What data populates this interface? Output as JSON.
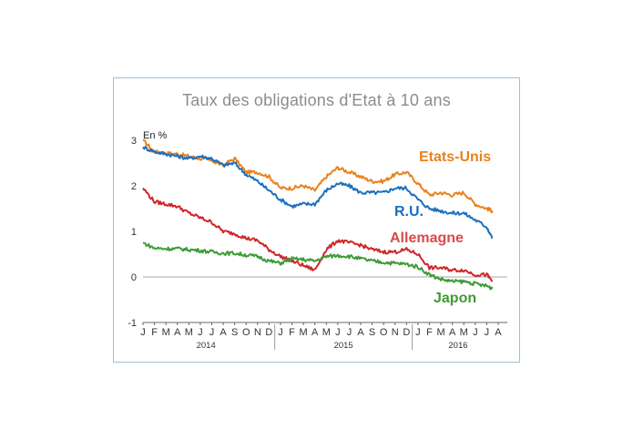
{
  "chart_data": {
    "type": "line",
    "title": "Taux des obligations d'Etat à 10 ans",
    "ylabel": "En %",
    "ylim": [
      -1,
      3
    ],
    "yticks": [
      "-1",
      "0",
      "1",
      "2",
      "3"
    ],
    "x_month_labels": [
      "J",
      "F",
      "M",
      "A",
      "M",
      "J",
      "J",
      "A",
      "S",
      "O",
      "N",
      "D",
      "J",
      "F",
      "M",
      "A",
      "M",
      "J",
      "J",
      "A",
      "S",
      "O",
      "N",
      "D",
      "J",
      "F",
      "M",
      "A",
      "M",
      "J",
      "J",
      "A"
    ],
    "x_year_labels": [
      "2014",
      "2015",
      "2016"
    ],
    "grid": false,
    "series": [
      {
        "name": "Etats-Unis",
        "color": "#e8821e",
        "x": [
          0,
          1,
          2,
          3,
          4,
          5,
          6,
          7,
          8,
          9,
          10,
          11,
          12,
          13,
          14,
          15,
          16,
          17,
          18,
          19,
          20,
          21,
          22,
          23,
          24,
          25,
          26,
          27,
          28,
          29,
          30,
          30.5
        ],
        "values": [
          3.0,
          2.75,
          2.72,
          2.7,
          2.65,
          2.6,
          2.55,
          2.45,
          2.6,
          2.3,
          2.3,
          2.2,
          1.95,
          1.95,
          2.0,
          1.9,
          2.2,
          2.4,
          2.3,
          2.2,
          2.1,
          2.1,
          2.25,
          2.3,
          2.05,
          1.8,
          1.85,
          1.8,
          1.85,
          1.6,
          1.5,
          1.45
        ]
      },
      {
        "name": "R.U.",
        "color": "#1b6fbe",
        "x": [
          0,
          1,
          2,
          3,
          4,
          5,
          6,
          7,
          8,
          9,
          10,
          11,
          12,
          13,
          14,
          15,
          16,
          17,
          18,
          19,
          20,
          21,
          22,
          23,
          24,
          25,
          26,
          27,
          28,
          29,
          30,
          30.5
        ],
        "values": [
          2.85,
          2.75,
          2.7,
          2.65,
          2.6,
          2.65,
          2.6,
          2.45,
          2.5,
          2.25,
          2.1,
          1.9,
          1.7,
          1.55,
          1.6,
          1.6,
          1.9,
          2.05,
          2.0,
          1.85,
          1.85,
          1.85,
          1.95,
          1.95,
          1.7,
          1.5,
          1.45,
          1.4,
          1.4,
          1.25,
          1.1,
          0.85
        ]
      },
      {
        "name": "Allemagne",
        "color": "#d0262a",
        "x": [
          0,
          1,
          2,
          3,
          4,
          5,
          6,
          7,
          8,
          9,
          10,
          11,
          12,
          13,
          14,
          15,
          16,
          17,
          18,
          19,
          20,
          21,
          22,
          23,
          24,
          25,
          26,
          27,
          28,
          29,
          30,
          30.5
        ],
        "values": [
          1.95,
          1.65,
          1.6,
          1.55,
          1.4,
          1.3,
          1.2,
          1.0,
          0.95,
          0.85,
          0.8,
          0.6,
          0.45,
          0.35,
          0.25,
          0.15,
          0.6,
          0.8,
          0.75,
          0.7,
          0.6,
          0.55,
          0.55,
          0.6,
          0.5,
          0.2,
          0.2,
          0.15,
          0.15,
          0.05,
          0.05,
          -0.1
        ]
      },
      {
        "name": "Japon",
        "color": "#3d9b35",
        "x": [
          0,
          1,
          2,
          3,
          4,
          5,
          6,
          7,
          8,
          9,
          10,
          11,
          12,
          13,
          14,
          15,
          16,
          17,
          18,
          19,
          20,
          21,
          22,
          23,
          24,
          25,
          26,
          27,
          28,
          29,
          30,
          30.5
        ],
        "values": [
          0.75,
          0.63,
          0.62,
          0.62,
          0.6,
          0.58,
          0.55,
          0.52,
          0.52,
          0.48,
          0.45,
          0.35,
          0.3,
          0.4,
          0.38,
          0.35,
          0.45,
          0.47,
          0.45,
          0.4,
          0.35,
          0.32,
          0.3,
          0.28,
          0.22,
          0.05,
          -0.05,
          -0.1,
          -0.1,
          -0.15,
          -0.2,
          -0.25
        ]
      }
    ]
  }
}
